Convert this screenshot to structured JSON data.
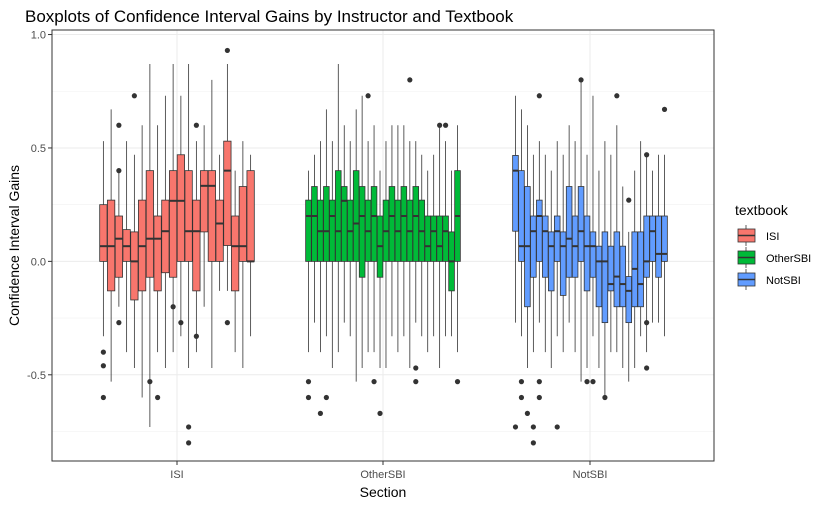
{
  "chart_data": {
    "type": "boxplot",
    "title": "Boxplots of Confidence Interval Gains by Instructor and Textbook",
    "xlabel": "Section",
    "ylabel": "Confidence Interval Gains",
    "categories": [
      "ISI",
      "OtherSBI",
      "NotSBI"
    ],
    "ylim": [
      -0.88,
      1.02
    ],
    "yticks": [
      -0.5,
      0.0,
      0.5,
      1.0
    ],
    "ytick_labels": [
      "-0.5",
      "0.0",
      "0.5",
      "1.0"
    ],
    "grid": true,
    "legend": {
      "title": "textbook",
      "position": "right",
      "entries": [
        "ISI",
        "OtherSBI",
        "NotSBI"
      ]
    },
    "colors": {
      "ISI": "#F8766D",
      "OtherSBI": "#00BA38",
      "NotSBI": "#619CFF"
    },
    "series": [
      {
        "name": "ISI",
        "boxes": [
          {
            "q1": 0.0,
            "median": 0.067,
            "q3": 0.25,
            "lower": -0.33,
            "upper": 0.53,
            "outliers": [
              -0.4,
              -0.46,
              -0.6
            ]
          },
          {
            "q1": -0.13,
            "median": 0.067,
            "q3": 0.27,
            "lower": -0.53,
            "upper": 0.67,
            "outliers": []
          },
          {
            "q1": -0.07,
            "median": 0.1,
            "q3": 0.2,
            "lower": -0.2,
            "upper": 0.4,
            "outliers": [
              0.4,
              0.6,
              -0.27
            ]
          },
          {
            "q1": 0.0,
            "median": 0.067,
            "q3": 0.14,
            "lower": -0.4,
            "upper": 0.53,
            "outliers": []
          },
          {
            "q1": -0.17,
            "median": 0.0,
            "q3": 0.13,
            "lower": -0.47,
            "upper": 0.47,
            "outliers": [
              0.73
            ]
          },
          {
            "q1": -0.13,
            "median": 0.067,
            "q3": 0.27,
            "lower": -0.6,
            "upper": 0.6,
            "outliers": []
          },
          {
            "q1": -0.07,
            "median": 0.1,
            "q3": 0.4,
            "lower": -0.73,
            "upper": 0.87,
            "outliers": [
              -0.53
            ]
          },
          {
            "q1": -0.13,
            "median": 0.1,
            "q3": 0.2,
            "lower": -0.4,
            "upper": 0.6,
            "outliers": [
              -0.6
            ]
          },
          {
            "q1": -0.05,
            "median": 0.133,
            "q3": 0.27,
            "lower": -0.47,
            "upper": 0.73,
            "outliers": []
          },
          {
            "q1": -0.07,
            "median": 0.267,
            "q3": 0.4,
            "lower": -0.4,
            "upper": 0.87,
            "outliers": [
              -0.2
            ]
          },
          {
            "q1": 0.0,
            "median": 0.267,
            "q3": 0.47,
            "lower": -0.33,
            "upper": 0.73,
            "outliers": [
              -0.27
            ]
          },
          {
            "q1": 0.0,
            "median": 0.133,
            "q3": 0.4,
            "lower": -0.47,
            "upper": 0.87,
            "outliers": [
              -0.73,
              -0.8
            ]
          },
          {
            "q1": -0.13,
            "median": 0.133,
            "q3": 0.27,
            "lower": -0.4,
            "upper": 0.53,
            "outliers": [
              0.6,
              -0.33
            ]
          },
          {
            "q1": 0.13,
            "median": 0.333,
            "q3": 0.4,
            "lower": -0.2,
            "upper": 0.6,
            "outliers": []
          },
          {
            "q1": 0.0,
            "median": 0.333,
            "q3": 0.4,
            "lower": -0.47,
            "upper": 0.8,
            "outliers": []
          },
          {
            "q1": 0.0,
            "median": 0.167,
            "q3": 0.27,
            "lower": -0.13,
            "upper": 0.47,
            "outliers": []
          },
          {
            "q1": 0.07,
            "median": 0.4,
            "q3": 0.53,
            "lower": -0.13,
            "upper": 0.87,
            "outliers": [
              0.93,
              -0.27
            ]
          },
          {
            "q1": -0.13,
            "median": 0.067,
            "q3": 0.2,
            "lower": -0.4,
            "upper": 0.4,
            "outliers": []
          },
          {
            "q1": 0.0,
            "median": 0.067,
            "q3": 0.33,
            "lower": -0.47,
            "upper": 0.53,
            "outliers": []
          },
          {
            "q1": 0.0,
            "median": 0.0,
            "q3": 0.4,
            "lower": -0.33,
            "upper": 0.47,
            "outliers": []
          }
        ]
      },
      {
        "name": "OtherSBI",
        "boxes": [
          {
            "q1": 0.0,
            "median": 0.2,
            "q3": 0.27,
            "lower": -0.4,
            "upper": 0.4,
            "outliers": [
              -0.53,
              -0.6
            ]
          },
          {
            "q1": 0.0,
            "median": 0.2,
            "q3": 0.33,
            "lower": -0.27,
            "upper": 0.47,
            "outliers": []
          },
          {
            "q1": 0.0,
            "median": 0.133,
            "q3": 0.27,
            "lower": -0.4,
            "upper": 0.53,
            "outliers": [
              -0.67
            ]
          },
          {
            "q1": 0.0,
            "median": 0.133,
            "q3": 0.33,
            "lower": -0.33,
            "upper": 0.67,
            "outliers": [
              -0.6
            ]
          },
          {
            "q1": 0.0,
            "median": 0.2,
            "q3": 0.27,
            "lower": -0.47,
            "upper": 0.53,
            "outliers": []
          },
          {
            "q1": 0.0,
            "median": 0.133,
            "q3": 0.4,
            "lower": -0.4,
            "upper": 0.87,
            "outliers": []
          },
          {
            "q1": 0.0,
            "median": 0.267,
            "q3": 0.33,
            "lower": -0.27,
            "upper": 0.6,
            "outliers": []
          },
          {
            "q1": 0.0,
            "median": 0.133,
            "q3": 0.27,
            "lower": -0.33,
            "upper": 0.53,
            "outliers": []
          },
          {
            "q1": 0.0,
            "median": 0.167,
            "q3": 0.4,
            "lower": -0.53,
            "upper": 0.67,
            "outliers": []
          },
          {
            "q1": -0.07,
            "median": 0.2,
            "q3": 0.33,
            "lower": -0.47,
            "upper": 0.73,
            "outliers": []
          },
          {
            "q1": 0.0,
            "median": 0.133,
            "q3": 0.27,
            "lower": -0.4,
            "upper": 0.53,
            "outliers": [
              0.73
            ]
          },
          {
            "q1": 0.0,
            "median": 0.2,
            "q3": 0.33,
            "lower": -0.4,
            "upper": 0.6,
            "outliers": [
              -0.53
            ]
          },
          {
            "q1": -0.07,
            "median": 0.067,
            "q3": 0.2,
            "lower": -0.47,
            "upper": 0.4,
            "outliers": [
              -0.67
            ]
          },
          {
            "q1": 0.0,
            "median": 0.133,
            "q3": 0.27,
            "lower": -0.47,
            "upper": 0.53,
            "outliers": []
          },
          {
            "q1": 0.0,
            "median": 0.2,
            "q3": 0.33,
            "lower": -0.33,
            "upper": 0.6,
            "outliers": []
          },
          {
            "q1": 0.0,
            "median": 0.133,
            "q3": 0.27,
            "lower": -0.4,
            "upper": 0.6,
            "outliers": []
          },
          {
            "q1": 0.0,
            "median": 0.2,
            "q3": 0.33,
            "lower": -0.33,
            "upper": 0.6,
            "outliers": []
          },
          {
            "q1": 0.0,
            "median": 0.133,
            "q3": 0.27,
            "lower": -0.47,
            "upper": 0.53,
            "outliers": [
              0.8
            ]
          },
          {
            "q1": 0.0,
            "median": 0.2,
            "q3": 0.33,
            "lower": -0.27,
            "upper": 0.53,
            "outliers": [
              -0.47,
              -0.53
            ]
          },
          {
            "q1": 0.0,
            "median": 0.133,
            "q3": 0.27,
            "lower": -0.33,
            "upper": 0.47,
            "outliers": []
          },
          {
            "q1": 0.0,
            "median": 0.067,
            "q3": 0.2,
            "lower": -0.4,
            "upper": 0.4,
            "outliers": []
          },
          {
            "q1": 0.0,
            "median": 0.133,
            "q3": 0.2,
            "lower": -0.33,
            "upper": 0.47,
            "outliers": []
          },
          {
            "q1": 0.0,
            "median": 0.067,
            "q3": 0.2,
            "lower": -0.47,
            "upper": 0.6,
            "outliers": [
              0.6
            ]
          },
          {
            "q1": 0.0,
            "median": 0.133,
            "q3": 0.2,
            "lower": -0.33,
            "upper": 0.53,
            "outliers": [
              0.6
            ]
          },
          {
            "q1": -0.13,
            "median": 0.0,
            "q3": 0.13,
            "lower": -0.33,
            "upper": 0.4,
            "outliers": []
          },
          {
            "q1": 0.0,
            "median": 0.2,
            "q3": 0.4,
            "lower": -0.4,
            "upper": 0.6,
            "outliers": [
              -0.53
            ]
          }
        ]
      },
      {
        "name": "NotSBI",
        "boxes": [
          {
            "q1": 0.133,
            "median": 0.4,
            "q3": 0.467,
            "lower": -0.27,
            "upper": 0.73,
            "outliers": [
              -0.73
            ]
          },
          {
            "q1": 0.0,
            "median": 0.067,
            "q3": 0.4,
            "lower": -0.33,
            "upper": 0.67,
            "outliers": [
              -0.53,
              -0.6
            ]
          },
          {
            "q1": -0.2,
            "median": 0.067,
            "q3": 0.33,
            "lower": -0.47,
            "upper": 0.6,
            "outliers": [
              -0.67
            ]
          },
          {
            "q1": -0.07,
            "median": 0.133,
            "q3": 0.2,
            "lower": -0.4,
            "upper": 0.47,
            "outliers": [
              -0.73,
              -0.8
            ]
          },
          {
            "q1": 0.0,
            "median": 0.2,
            "q3": 0.27,
            "lower": -0.27,
            "upper": 0.53,
            "outliers": [
              0.73,
              -0.53,
              -0.6
            ]
          },
          {
            "q1": -0.07,
            "median": 0.133,
            "q3": 0.2,
            "lower": -0.4,
            "upper": 0.47,
            "outliers": []
          },
          {
            "q1": -0.13,
            "median": 0.067,
            "q3": 0.13,
            "lower": -0.47,
            "upper": 0.4,
            "outliers": []
          },
          {
            "q1": 0.0,
            "median": 0.133,
            "q3": 0.2,
            "lower": -0.33,
            "upper": 0.53,
            "outliers": [
              -0.73
            ]
          },
          {
            "q1": -0.15,
            "median": 0.067,
            "q3": 0.13,
            "lower": -0.4,
            "upper": 0.47,
            "outliers": []
          },
          {
            "q1": -0.07,
            "median": 0.1,
            "q3": 0.33,
            "lower": -0.27,
            "upper": 0.6,
            "outliers": []
          },
          {
            "q1": -0.07,
            "median": 0.067,
            "q3": 0.2,
            "lower": -0.4,
            "upper": 0.53,
            "outliers": []
          },
          {
            "q1": 0.0,
            "median": 0.133,
            "q3": 0.33,
            "lower": -0.53,
            "upper": 0.8,
            "outliers": [
              0.8
            ]
          },
          {
            "q1": -0.13,
            "median": 0.067,
            "q3": 0.2,
            "lower": -0.47,
            "upper": 0.47,
            "outliers": [
              -0.53
            ]
          },
          {
            "q1": -0.07,
            "median": 0.067,
            "q3": 0.13,
            "lower": -0.33,
            "upper": 0.73,
            "outliers": [
              -0.53
            ]
          },
          {
            "q1": -0.2,
            "median": 0.0,
            "q3": 0.067,
            "lower": -0.47,
            "upper": 0.4,
            "outliers": []
          },
          {
            "q1": -0.27,
            "median": 0.0,
            "q3": 0.13,
            "lower": -0.6,
            "upper": 0.53,
            "outliers": [
              -0.6
            ]
          },
          {
            "q1": -0.13,
            "median": -0.1,
            "q3": 0.067,
            "lower": -0.4,
            "upper": 0.47,
            "outliers": []
          },
          {
            "q1": -0.2,
            "median": -0.067,
            "q3": 0.13,
            "lower": -0.4,
            "upper": 0.6,
            "outliers": [
              0.73
            ]
          },
          {
            "q1": -0.2,
            "median": -0.1,
            "q3": 0.067,
            "lower": -0.47,
            "upper": 0.33,
            "outliers": []
          },
          {
            "q1": -0.27,
            "median": -0.13,
            "q3": -0.067,
            "lower": -0.53,
            "upper": 0.13,
            "outliers": [
              0.27
            ]
          },
          {
            "q1": -0.2,
            "median": -0.033,
            "q3": 0.13,
            "lower": -0.47,
            "upper": 0.4,
            "outliers": []
          },
          {
            "q1": -0.2,
            "median": -0.1,
            "q3": 0.13,
            "lower": -0.33,
            "upper": 0.53,
            "outliers": []
          },
          {
            "q1": -0.07,
            "median": 0.0,
            "q3": 0.2,
            "lower": -0.4,
            "upper": 0.47,
            "outliers": [
              0.47,
              -0.27,
              -0.47
            ]
          },
          {
            "q1": 0.0,
            "median": 0.133,
            "q3": 0.2,
            "lower": -0.27,
            "upper": 0.4,
            "outliers": []
          },
          {
            "q1": -0.07,
            "median": 0.033,
            "q3": 0.2,
            "lower": -0.27,
            "upper": 0.47,
            "outliers": []
          },
          {
            "q1": 0.0,
            "median": 0.033,
            "q3": 0.2,
            "lower": -0.33,
            "upper": 0.47,
            "outliers": [
              0.67
            ]
          }
        ]
      }
    ]
  }
}
